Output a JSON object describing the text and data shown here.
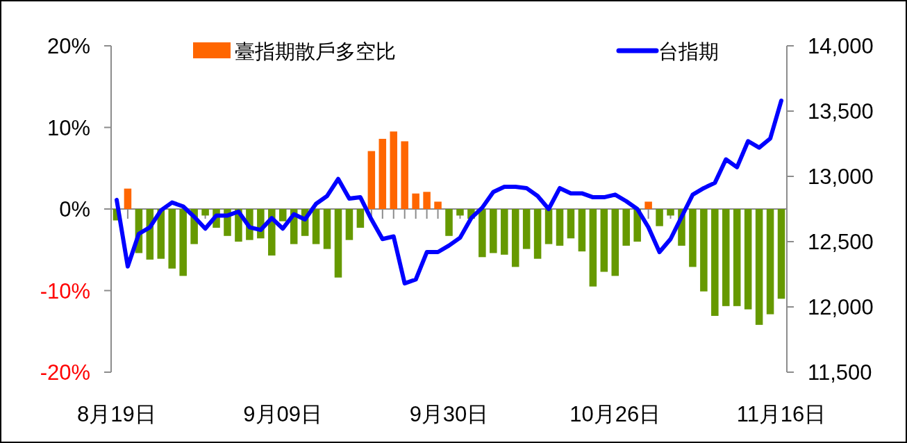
{
  "chart_data": {
    "type": "bar",
    "categories": [
      "8月19日",
      null,
      null,
      null,
      null,
      null,
      null,
      null,
      null,
      null,
      null,
      null,
      null,
      null,
      null,
      "9月09日",
      null,
      null,
      null,
      null,
      null,
      null,
      null,
      null,
      null,
      null,
      null,
      null,
      null,
      null,
      "9月30日",
      null,
      null,
      null,
      null,
      null,
      null,
      null,
      null,
      null,
      null,
      null,
      null,
      null,
      null,
      "10月26日",
      null,
      null,
      null,
      null,
      null,
      null,
      null,
      null,
      null,
      null,
      null,
      null,
      null,
      null,
      "11月16日"
    ],
    "series": [
      {
        "name": "臺指期散戶多空比",
        "color": "#ff6600",
        "values": [
          -1.4,
          2.5,
          -5.4,
          -6.2,
          -6.1,
          -7.3,
          -8.2,
          -4.3,
          -0.8,
          -2.3,
          -3.3,
          -4.0,
          -3.8,
          -3.6,
          -5.7,
          -1.5,
          -4.3,
          -3.3,
          -4.3,
          -4.9,
          -8.4,
          -3.8,
          -2.3,
          7.1,
          8.6,
          9.5,
          8.3,
          1.9,
          2.1,
          0.9,
          -3.3,
          -0.8,
          -1.2,
          -5.9,
          -5.4,
          -5.6,
          -7.1,
          -4.9,
          -6.1,
          -4.3,
          -4.5,
          -3.6,
          -5.2,
          -9.5,
          -7.7,
          -8.2,
          -4.5,
          -4.0,
          0.9,
          -2.1,
          -0.8,
          -4.5,
          -7.1,
          -10.1,
          -13.1,
          -11.9,
          -11.9,
          -12.3,
          -14.2,
          -12.9,
          -11.0
        ],
        "colors": [
          "#669900",
          "#ff6600",
          "#669900",
          "#669900",
          "#669900",
          "#669900",
          "#669900",
          "#669900",
          "#669900",
          "#669900",
          "#669900",
          "#669900",
          "#669900",
          "#669900",
          "#669900",
          "#669900",
          "#669900",
          "#669900",
          "#669900",
          "#669900",
          "#669900",
          "#669900",
          "#669900",
          "#ff6600",
          "#ff6600",
          "#ff6600",
          "#ff6600",
          "#ff6600",
          "#ff6600",
          "#ff6600",
          "#669900",
          "#669900",
          "#669900",
          "#669900",
          "#669900",
          "#669900",
          "#669900",
          "#669900",
          "#669900",
          "#669900",
          "#669900",
          "#669900",
          "#669900",
          "#669900",
          "#669900",
          "#669900",
          "#669900",
          "#669900",
          "#ff6600",
          "#669900",
          "#669900",
          "#669900",
          "#669900",
          "#669900",
          "#669900",
          "#669900",
          "#669900",
          "#669900",
          "#669900",
          "#669900",
          "#669900"
        ]
      },
      {
        "name": "台指期",
        "type": "line",
        "axis": "y2",
        "color": "#0000ff",
        "values": [
          12820,
          12310,
          12560,
          12610,
          12740,
          12800,
          12770,
          12690,
          12600,
          12700,
          12700,
          12730,
          12610,
          12590,
          12680,
          12600,
          12710,
          12670,
          12790,
          12850,
          12980,
          12830,
          12840,
          12670,
          12520,
          12540,
          12180,
          12210,
          12420,
          12420,
          12470,
          12530,
          12680,
          12760,
          12880,
          12920,
          12920,
          12910,
          12850,
          12750,
          12910,
          12870,
          12870,
          12840,
          12840,
          12860,
          12810,
          12750,
          12610,
          12420,
          12520,
          12690,
          12860,
          12910,
          12950,
          13130,
          13070,
          13270,
          13220,
          13290,
          13580
        ]
      }
    ],
    "ylim": [
      -20,
      20
    ],
    "yticks": [
      {
        "value": -20,
        "label": "-20%"
      },
      {
        "value": -10,
        "label": "-10%"
      },
      {
        "value": 0,
        "label": "0%"
      },
      {
        "value": 10,
        "label": "10%"
      },
      {
        "value": 20,
        "label": "20%"
      }
    ],
    "y2lim": [
      11500,
      14000
    ],
    "y2ticks": [
      {
        "value": 11500,
        "label": "11,500"
      },
      {
        "value": 12000,
        "label": "12,000"
      },
      {
        "value": 12500,
        "label": "12,500"
      },
      {
        "value": 13000,
        "label": "13,000"
      },
      {
        "value": 13500,
        "label": "13,500"
      },
      {
        "value": 14000,
        "label": "14,000"
      }
    ],
    "legend": "top"
  }
}
